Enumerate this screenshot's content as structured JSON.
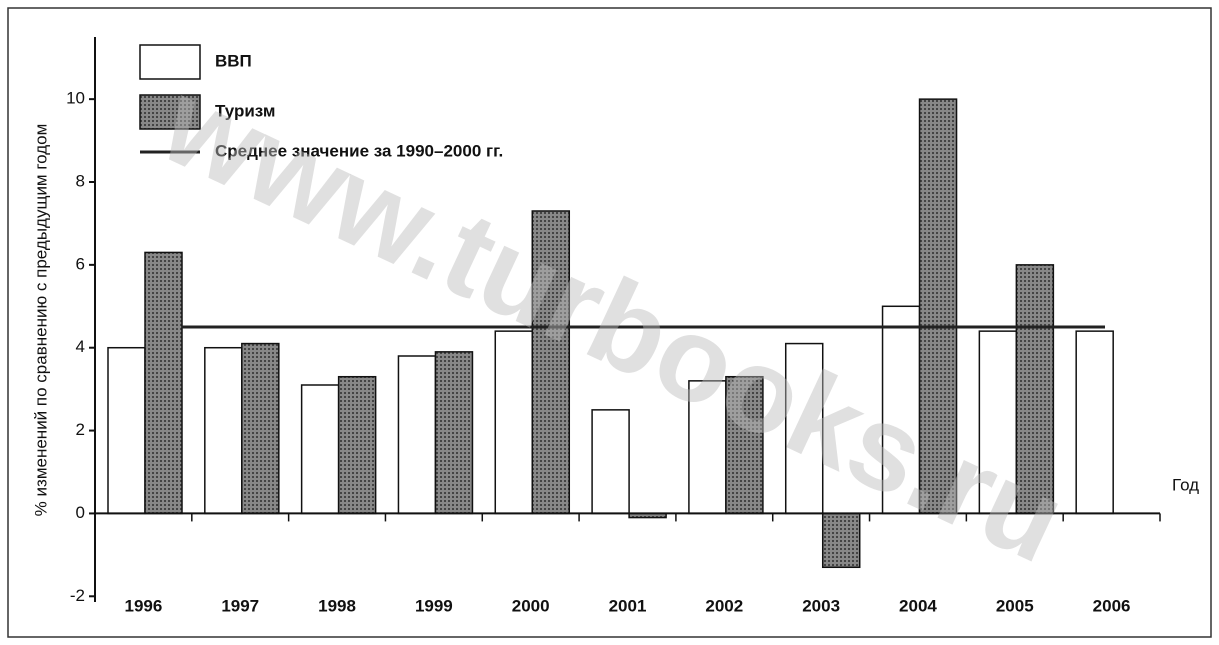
{
  "chart_data": {
    "type": "bar",
    "y_axis_label": "% изменений по сравнению с предыдущим годом",
    "x_axis_label": "Год",
    "categories": [
      "1996",
      "1997",
      "1998",
      "1999",
      "2000",
      "2001",
      "2002",
      "2003",
      "2004",
      "2005",
      "2006"
    ],
    "series": [
      {
        "name": "ВВП",
        "color": "#ffffff",
        "values": [
          4.0,
          4.0,
          3.1,
          3.8,
          4.4,
          2.5,
          3.2,
          4.1,
          5.0,
          4.4,
          4.4
        ]
      },
      {
        "name": "Туризм",
        "color": "#6e6e6e",
        "values": [
          6.3,
          4.1,
          3.3,
          3.9,
          7.3,
          -0.1,
          3.3,
          -1.3,
          10.0,
          6.0,
          null
        ]
      }
    ],
    "reference_line": {
      "name": "Среднее значение за 1990–2000 гг.",
      "value": 4.5,
      "color": "#222222"
    },
    "ylim": [
      -2.5,
      11.5
    ],
    "yticks": [
      -2,
      0,
      2,
      4,
      6,
      8,
      10
    ],
    "watermark": "www.turbooks.ru"
  }
}
